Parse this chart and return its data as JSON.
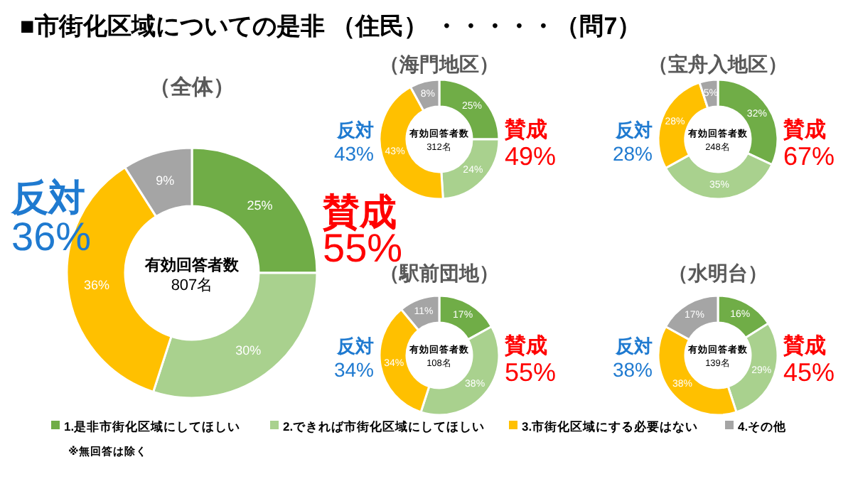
{
  "chart_data": [
    {
      "type": "donut",
      "title": "■市街化区域についての是非 （住民） ・・・・・（問7）",
      "subtitle": "（全体）",
      "categories": [
        "1.是非市街化区域にしてほしい",
        "2.できれば市街化区域にしてほしい",
        "3.市街化区域にする必要はない",
        "4.その他"
      ],
      "values": [
        25,
        30,
        36,
        9
      ],
      "value_labels": [
        "25%",
        "30%",
        "36%",
        "9%"
      ],
      "colors": [
        "#70ad47",
        "#a9d18e",
        "#ffc000",
        "#a5a5a5"
      ],
      "legend": "bottom",
      "annotations": [
        "有効回答者数",
        "807名",
        "賛成",
        "55%",
        "反対",
        "36%",
        "※無回答は除く"
      ]
    },
    {
      "type": "donut",
      "subtitle": "（海門地区）",
      "values": [
        25,
        24,
        43,
        8
      ],
      "value_labels": [
        "25%",
        "24%",
        "43%",
        "8%"
      ],
      "colors": [
        "#70ad47",
        "#a9d18e",
        "#ffc000",
        "#a5a5a5"
      ],
      "annotations": [
        "有効回答者数",
        "312名",
        "賛成",
        "49%",
        "反対",
        "43%"
      ]
    },
    {
      "type": "donut",
      "subtitle": "（宝舟入地区）",
      "values": [
        32,
        35,
        28,
        5
      ],
      "value_labels": [
        "32%",
        "35%",
        "28%",
        "5%"
      ],
      "colors": [
        "#70ad47",
        "#a9d18e",
        "#ffc000",
        "#a5a5a5"
      ],
      "annotations": [
        "有効回答者数",
        "248名",
        "賛成",
        "67%",
        "反対",
        "28%"
      ]
    },
    {
      "type": "donut",
      "subtitle": "（駅前団地）",
      "values": [
        17,
        38,
        34,
        11
      ],
      "value_labels": [
        "17%",
        "38%",
        "34%",
        "11%"
      ],
      "colors": [
        "#70ad47",
        "#a9d18e",
        "#ffc000",
        "#a5a5a5"
      ],
      "annotations": [
        "有効回答者数",
        "108名",
        "賛成",
        "55%",
        "反対",
        "34%"
      ]
    },
    {
      "type": "donut",
      "subtitle": "（水明台）",
      "values": [
        16,
        29,
        38,
        17
      ],
      "value_labels": [
        "16%",
        "29%",
        "38%",
        "17%"
      ],
      "colors": [
        "#70ad47",
        "#a9d18e",
        "#ffc000",
        "#a5a5a5"
      ],
      "annotations": [
        "有効回答者数",
        "139名",
        "賛成",
        "45%",
        "反対",
        "38%"
      ]
    }
  ]
}
